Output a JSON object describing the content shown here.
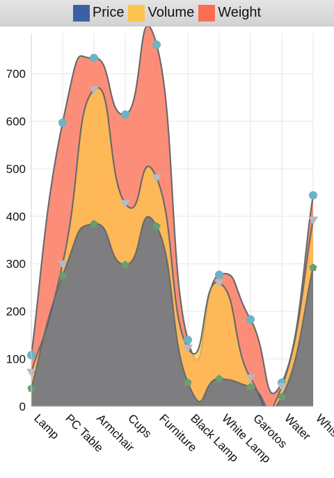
{
  "chart_data": {
    "type": "area",
    "stacked": false,
    "smooth": true,
    "title": "",
    "xlabel": "",
    "ylabel": "",
    "categories": [
      "Lamp",
      "PC Table",
      "Armchair",
      "Cups",
      "Furniture",
      "Black Lamp",
      "White Lamp",
      "Garotos",
      "Water",
      "Whisky"
    ],
    "ylim": [
      0,
      800
    ],
    "yticks": [
      0,
      100,
      200,
      300,
      400,
      500,
      600,
      700
    ],
    "grid": true,
    "legend_position": "top",
    "series": [
      {
        "name": "Weight",
        "color": "#fb6e53",
        "marker_color": "#6bb3c7",
        "marker": "circle",
        "values": [
          108,
          597,
          733,
          614,
          761,
          140,
          277,
          183,
          50,
          444
        ]
      },
      {
        "name": "Volume",
        "color": "#fec44f",
        "marker_color": "#b7b9c1",
        "marker": "triangle",
        "values": [
          72,
          300,
          666,
          427,
          481,
          123,
          260,
          60,
          42,
          392
        ]
      },
      {
        "name": "Price",
        "color": "#2f5a9a",
        "marker_color": "#6b9e6e",
        "marker": "pentagon",
        "values": [
          38,
          275,
          384,
          298,
          379,
          50,
          58,
          41,
          20,
          292
        ]
      }
    ],
    "legend_order": [
      "Price",
      "Volume",
      "Weight"
    ]
  }
}
